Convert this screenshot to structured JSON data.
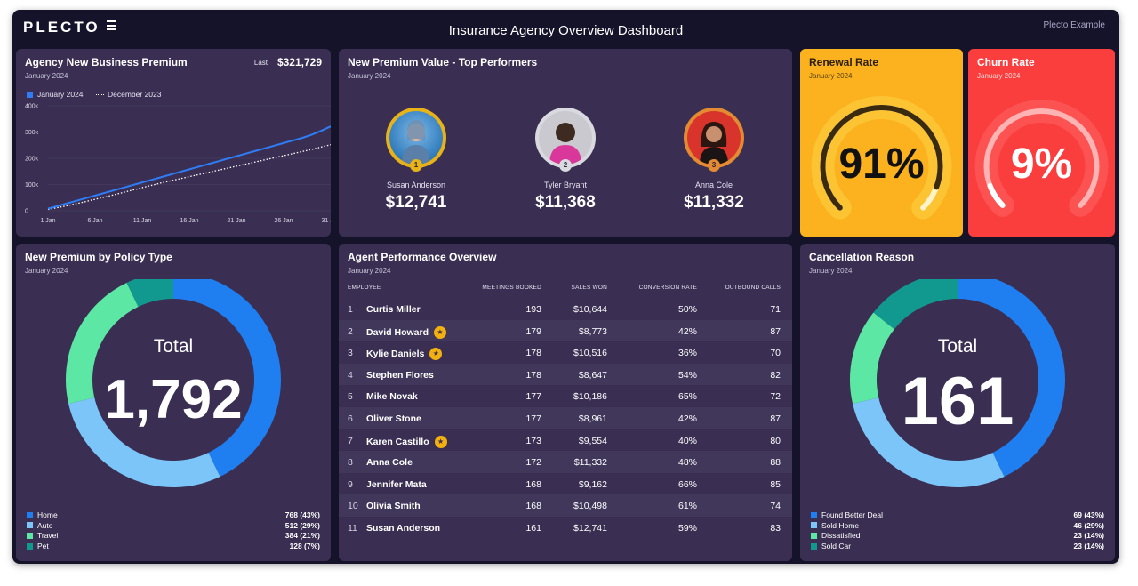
{
  "header": {
    "logo": "PLECTO",
    "title": "Insurance Agency Overview Dashboard",
    "account": "Plecto Example"
  },
  "new_business": {
    "title": "Agency New Business Premium",
    "period": "January 2024",
    "last_label": "Last",
    "last_value": "$321,729",
    "legend": [
      "January 2024",
      "December 2023"
    ],
    "colors": {
      "current": "#2f7df6",
      "previous": "#ffffff"
    },
    "chart_data": {
      "type": "line",
      "title": "Agency New Business Premium",
      "x": [
        1,
        2,
        3,
        4,
        5,
        6,
        7,
        8,
        9,
        10,
        11,
        12,
        13,
        14,
        15,
        16,
        17,
        18,
        19,
        20,
        21,
        22,
        23,
        24,
        25,
        26,
        27,
        28,
        29,
        30,
        31
      ],
      "x_tick_labels": [
        "1 Jan",
        "6 Jan",
        "11 Jan",
        "16 Jan",
        "21 Jan",
        "26 Jan",
        "31 Jan"
      ],
      "x_tick_values": [
        1,
        6,
        11,
        16,
        21,
        26,
        31
      ],
      "y_tick_labels": [
        "0",
        "100k",
        "200k",
        "300k",
        "400k"
      ],
      "y_tick_values": [
        0,
        100000,
        200000,
        300000,
        400000
      ],
      "ylim": [
        0,
        400000
      ],
      "series": [
        {
          "name": "January 2024",
          "values": [
            8000,
            18000,
            28000,
            38000,
            48000,
            58000,
            68000,
            78000,
            88000,
            98000,
            108000,
            118000,
            128000,
            138000,
            148000,
            158000,
            168000,
            178000,
            188000,
            198000,
            208000,
            218000,
            228000,
            238000,
            248000,
            258000,
            268000,
            278000,
            290000,
            305000,
            321729
          ]
        },
        {
          "name": "December 2023",
          "values": [
            5000,
            12000,
            19000,
            27000,
            35000,
            44000,
            52000,
            61000,
            70000,
            79000,
            88000,
            97000,
            106000,
            114000,
            122000,
            130000,
            138000,
            146000,
            154000,
            162000,
            170000,
            178000,
            186000,
            194000,
            202000,
            210000,
            218000,
            226000,
            234000,
            243000,
            252000
          ]
        }
      ]
    }
  },
  "top_performers": {
    "title": "New Premium Value - Top Performers",
    "period": "January 2024",
    "people": [
      {
        "rank": "1",
        "name": "Susan Anderson",
        "value": "$12,741",
        "ring": "#e8b318",
        "rank_color": "#e8b318"
      },
      {
        "rank": "2",
        "name": "Tyler Bryant",
        "value": "$11,368",
        "ring": "#d9d9e0",
        "rank_color": "#d9d9e0"
      },
      {
        "rank": "3",
        "name": "Anna Cole",
        "value": "$11,332",
        "ring": "#e38a32",
        "rank_color": "#e38a32"
      }
    ]
  },
  "renewal": {
    "title": "Renewal Rate",
    "period": "January 2024",
    "value": "91%",
    "percent": 91,
    "bg": "#fbb21e"
  },
  "churn": {
    "title": "Churn Rate",
    "period": "January 2024",
    "value": "9%",
    "percent": 9,
    "bg": "#fa3d3d"
  },
  "policy_type": {
    "title": "New Premium by Policy Type",
    "period": "January 2024",
    "total_label": "Total",
    "total_value": "1,792",
    "chart_data": {
      "type": "pie",
      "title": "New Premium by Policy Type",
      "categories": [
        "Home",
        "Auto",
        "Travel",
        "Pet"
      ],
      "values": [
        768,
        512,
        384,
        128
      ],
      "labels": [
        "768 (43%)",
        "512 (29%)",
        "384 (21%)",
        "128 (7%)"
      ],
      "colors": [
        "#1f7ef0",
        "#7cc5f9",
        "#5ce8a4",
        "#12998f"
      ]
    }
  },
  "agents": {
    "title": "Agent Performance Overview",
    "period": "January 2024",
    "columns": [
      "EMPLOYEE",
      "MEETINGS BOOKED",
      "SALES WON",
      "CONVERSION RATE",
      "OUTBOUND CALLS"
    ],
    "rows": [
      {
        "n": "1",
        "name": "Curtis Miller",
        "badge": false,
        "meetings": "193",
        "sales": "$10,644",
        "conv": "50%",
        "calls": "71"
      },
      {
        "n": "2",
        "name": "David Howard",
        "badge": true,
        "meetings": "179",
        "sales": "$8,773",
        "conv": "42%",
        "calls": "87"
      },
      {
        "n": "3",
        "name": "Kylie Daniels",
        "badge": true,
        "meetings": "178",
        "sales": "$10,516",
        "conv": "36%",
        "calls": "70"
      },
      {
        "n": "4",
        "name": "Stephen Flores",
        "badge": false,
        "meetings": "178",
        "sales": "$8,647",
        "conv": "54%",
        "calls": "82"
      },
      {
        "n": "5",
        "name": "Mike Novak",
        "badge": false,
        "meetings": "177",
        "sales": "$10,186",
        "conv": "65%",
        "calls": "72"
      },
      {
        "n": "6",
        "name": "Oliver Stone",
        "badge": false,
        "meetings": "177",
        "sales": "$8,961",
        "conv": "42%",
        "calls": "87"
      },
      {
        "n": "7",
        "name": "Karen Castillo",
        "badge": true,
        "meetings": "173",
        "sales": "$9,554",
        "conv": "40%",
        "calls": "80"
      },
      {
        "n": "8",
        "name": "Anna Cole",
        "badge": false,
        "meetings": "172",
        "sales": "$11,332",
        "conv": "48%",
        "calls": "88"
      },
      {
        "n": "9",
        "name": "Jennifer Mata",
        "badge": false,
        "meetings": "168",
        "sales": "$9,162",
        "conv": "66%",
        "calls": "85"
      },
      {
        "n": "10",
        "name": "Olivia Smith",
        "badge": false,
        "meetings": "168",
        "sales": "$10,498",
        "conv": "61%",
        "calls": "74"
      },
      {
        "n": "11",
        "name": "Susan Anderson",
        "badge": false,
        "meetings": "161",
        "sales": "$12,741",
        "conv": "59%",
        "calls": "83"
      }
    ]
  },
  "cancellation": {
    "title": "Cancellation Reason",
    "period": "January 2024",
    "total_label": "Total",
    "total_value": "161",
    "chart_data": {
      "type": "pie",
      "title": "Cancellation Reason",
      "categories": [
        "Found Better Deal",
        "Sold Home",
        "Dissatisfied",
        "Sold Car"
      ],
      "values": [
        69,
        46,
        23,
        23
      ],
      "labels": [
        "69 (43%)",
        "46 (29%)",
        "23 (14%)",
        "23 (14%)"
      ],
      "colors": [
        "#1f7ef0",
        "#7cc5f9",
        "#5ce8a4",
        "#12998f"
      ]
    }
  }
}
